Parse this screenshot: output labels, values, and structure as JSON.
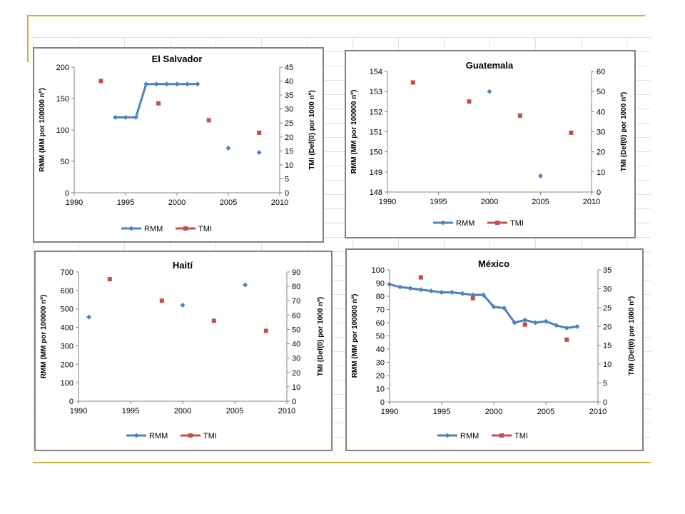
{
  "colors": {
    "rmm": "#4f81bd",
    "tmi": "#c0504d",
    "accent": "#c7b63c",
    "axis": "#868686"
  },
  "legend": {
    "rmm": "RMM",
    "tmi": "TMI"
  },
  "chart_data": [
    {
      "type": "scatter",
      "title": "El Salvador",
      "xlabel": "",
      "ylabel": "RMM  (MM por 100000 nº)",
      "y2label": "TMI (Def(0) por 1000 nº)",
      "xlim": [
        1990,
        2010
      ],
      "ylim": [
        0,
        200
      ],
      "y2lim": [
        0,
        45
      ],
      "xticks": [
        1990,
        1995,
        2000,
        2005,
        2010
      ],
      "yticks": [
        0,
        50,
        100,
        150,
        200
      ],
      "y2ticks": [
        0,
        5,
        10,
        15,
        20,
        25,
        30,
        35,
        40,
        45
      ],
      "legend_position": "bottom",
      "series": [
        {
          "name": "RMM",
          "axis": "left",
          "line": true,
          "x": [
            1994,
            1995,
            1996,
            1997,
            1998,
            1999,
            2000,
            2001,
            2002
          ],
          "y": [
            120,
            120,
            120,
            173,
            173,
            173,
            173,
            173,
            173
          ]
        },
        {
          "name": "RMM",
          "axis": "left",
          "line": false,
          "x": [
            2005,
            2008
          ],
          "y": [
            71,
            64
          ]
        },
        {
          "name": "TMI",
          "axis": "right",
          "line": false,
          "x": [
            1992.6,
            1998.2,
            2003.1,
            2008
          ],
          "y": [
            40,
            32,
            26,
            21.5
          ]
        }
      ]
    },
    {
      "type": "scatter",
      "title": "Guatemala",
      "xlabel": "",
      "ylabel": "RMM  (MM por 100000 nº)",
      "y2label": "TMI (Def(0) por 1000 nº)",
      "xlim": [
        1990,
        2010
      ],
      "ylim": [
        148,
        154
      ],
      "y2lim": [
        0,
        60
      ],
      "xticks": [
        1990,
        1995,
        2000,
        2005,
        2010
      ],
      "yticks": [
        148,
        149,
        150,
        151,
        152,
        153,
        154
      ],
      "y2ticks": [
        0,
        10,
        20,
        30,
        40,
        50,
        60
      ],
      "legend_position": "bottom",
      "series": [
        {
          "name": "RMM",
          "axis": "left",
          "line": false,
          "x": [
            1998,
            2000,
            2003,
            2005
          ],
          "y": [
            152.5,
            153,
            151.8,
            148.8
          ]
        },
        {
          "name": "TMI",
          "axis": "right",
          "line": false,
          "x": [
            1992.5,
            1998,
            2003,
            2008
          ],
          "y": [
            54.5,
            45,
            38,
            29.5
          ]
        }
      ]
    },
    {
      "type": "scatter",
      "title": "Haití",
      "xlabel": "",
      "ylabel": "RMM  (MM por 100000 nº)",
      "y2label": "TMI (Def(0) por 1000 nº)",
      "xlim": [
        1990,
        2010
      ],
      "ylim": [
        0,
        700
      ],
      "y2lim": [
        0,
        90
      ],
      "xticks": [
        1990,
        1995,
        2000,
        2005,
        2010
      ],
      "yticks": [
        0,
        100,
        200,
        300,
        400,
        500,
        600,
        700
      ],
      "y2ticks": [
        0,
        10,
        20,
        30,
        40,
        50,
        60,
        70,
        80,
        90
      ],
      "legend_position": "bottom",
      "series": [
        {
          "name": "RMM",
          "axis": "left",
          "line": false,
          "x": [
            1991,
            2000,
            2006
          ],
          "y": [
            456,
            520,
            630
          ]
        },
        {
          "name": "TMI",
          "axis": "right",
          "line": false,
          "x": [
            1993,
            1998,
            2003,
            2008
          ],
          "y": [
            85,
            70,
            56,
            49
          ]
        }
      ]
    },
    {
      "type": "line",
      "title": "México",
      "xlabel": "",
      "ylabel": "RMM  (MM por 100000 nº)",
      "y2label": "TMI (Def(0) por 1000 nº)",
      "xlim": [
        1990,
        2010
      ],
      "ylim": [
        0,
        100
      ],
      "y2lim": [
        0,
        35
      ],
      "xticks": [
        1990,
        1995,
        2000,
        2005,
        2010
      ],
      "yticks": [
        0,
        10,
        20,
        30,
        40,
        50,
        60,
        70,
        80,
        90,
        100
      ],
      "y2ticks": [
        0,
        5,
        10,
        15,
        20,
        25,
        30,
        35
      ],
      "legend_position": "bottom",
      "series": [
        {
          "name": "RMM",
          "axis": "left",
          "line": true,
          "x": [
            1990,
            1991,
            1992,
            1993,
            1994,
            1995,
            1996,
            1997,
            1998,
            1999,
            2000,
            2001,
            2002,
            2003,
            2004,
            2005,
            2006,
            2007,
            2008
          ],
          "y": [
            89,
            87,
            86,
            85,
            84,
            83,
            83,
            82,
            81,
            81,
            72,
            71,
            60,
            62,
            60,
            61,
            58,
            56,
            57
          ]
        },
        {
          "name": "TMI",
          "axis": "right",
          "line": false,
          "x": [
            1993,
            1998,
            2003,
            2007
          ],
          "y": [
            33,
            27.5,
            20.5,
            16.5
          ]
        }
      ]
    }
  ]
}
